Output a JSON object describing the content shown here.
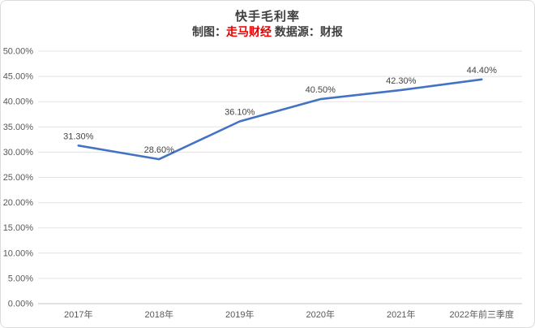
{
  "header": {
    "title": "快手毛利率",
    "subtitle_prefix": "制图：",
    "subtitle_brand": "走马财经",
    "subtitle_suffix": " 数据源：财报"
  },
  "colors": {
    "line": "#4472c4",
    "grid": "#e3e3e3",
    "axis_zero_line": "#c3c3c3",
    "tick_text": "#595959",
    "data_label_text": "#444444",
    "title_text": "#3f3f3f",
    "brand_red": "#e60000",
    "frame_border": "#dcdcdc"
  },
  "chart_data": {
    "type": "line",
    "title": "快手毛利率",
    "subtitle": "制图：走马财经 数据源：财报",
    "categories": [
      "2017年",
      "2018年",
      "2019年",
      "2020年",
      "2021年",
      "2022年前三季度"
    ],
    "series": [
      {
        "name": "毛利率",
        "values": [
          31.3,
          28.6,
          36.1,
          40.5,
          42.3,
          44.4
        ],
        "data_labels": [
          "31.30%",
          "28.60%",
          "36.10%",
          "40.50%",
          "42.30%",
          "44.40%"
        ],
        "color": "#4472c4"
      }
    ],
    "xlabel": "",
    "ylabel": "",
    "ylim": [
      0,
      50
    ],
    "ytick_step": 5,
    "ytick_labels": [
      "0.00%",
      "5.00%",
      "10.00%",
      "15.00%",
      "20.00%",
      "25.00%",
      "30.00%",
      "35.00%",
      "40.00%",
      "45.00%",
      "50.00%"
    ],
    "grid": "horizontal",
    "legend": "none"
  }
}
